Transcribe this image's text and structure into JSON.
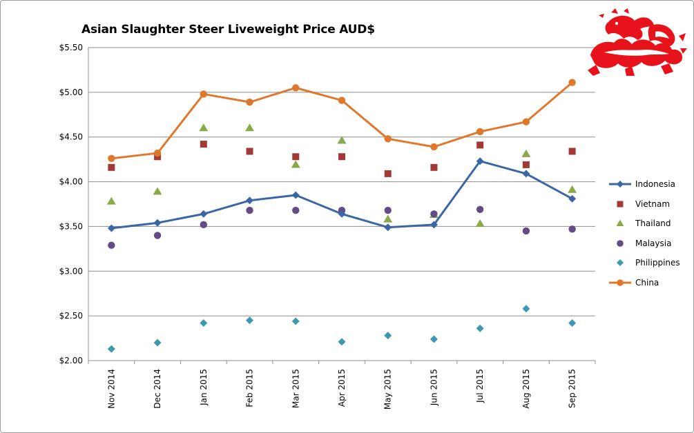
{
  "chart_data": {
    "type": "line",
    "title": "Asian Slaughter Steer Liveweight Price AUD$",
    "categories": [
      "Nov 2014",
      "Dec 2014",
      "Jan 2015",
      "Feb 2015",
      "Mar 2015",
      "Apr 2015",
      "May 2015",
      "Jun 2015",
      "Jul 2015",
      "Aug 2015",
      "Sep 2015"
    ],
    "ylim": [
      2.0,
      5.5
    ],
    "yticks": [
      "$2.00",
      "$2.50",
      "$3.00",
      "$3.50",
      "$4.00",
      "$4.50",
      "$5.00",
      "$5.50"
    ],
    "yticks_values": [
      2.0,
      2.5,
      3.0,
      3.5,
      4.0,
      4.5,
      5.0,
      5.5
    ],
    "grid": true,
    "legend_position": "right",
    "series": [
      {
        "name": "Indonesia",
        "marker": "diamond",
        "line": true,
        "color": "#3a66a6",
        "values": [
          3.48,
          3.54,
          3.64,
          3.79,
          3.85,
          3.64,
          3.49,
          3.52,
          4.23,
          4.09,
          3.81
        ]
      },
      {
        "name": "Vietnam",
        "marker": "square",
        "line": false,
        "color": "#a13a35",
        "values": [
          4.16,
          4.28,
          4.42,
          4.34,
          4.28,
          4.28,
          4.09,
          4.16,
          4.41,
          4.19,
          4.34
        ]
      },
      {
        "name": "Thailand",
        "marker": "triangle",
        "line": false,
        "color": "#8aaa4a",
        "values": [
          3.78,
          3.89,
          4.6,
          4.6,
          4.19,
          4.46,
          3.58,
          3.63,
          3.53,
          4.31,
          3.91
        ]
      },
      {
        "name": "Malaysia",
        "marker": "circle",
        "line": false,
        "color": "#634c86",
        "values": [
          3.29,
          3.4,
          3.52,
          3.68,
          3.68,
          3.68,
          3.68,
          3.64,
          3.69,
          3.45,
          3.47
        ]
      },
      {
        "name": "Philippines",
        "marker": "diamond",
        "line": false,
        "color": "#3d99b0",
        "values": [
          2.13,
          2.2,
          2.42,
          2.45,
          2.44,
          2.21,
          2.28,
          2.24,
          2.36,
          2.58,
          2.42
        ]
      },
      {
        "name": "China",
        "marker": "circle",
        "line": true,
        "color": "#e0782c",
        "values": [
          4.26,
          4.32,
          4.98,
          4.89,
          5.05,
          4.91,
          4.48,
          4.39,
          4.56,
          4.67,
          5.11
        ]
      }
    ]
  }
}
